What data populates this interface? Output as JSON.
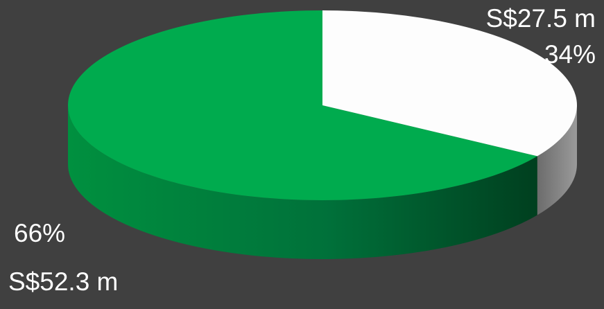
{
  "chart_data": {
    "type": "pie",
    "title": "",
    "style": "3d",
    "slices": [
      {
        "value_label": "S$27.5 m",
        "value": 27.5,
        "percent_label": "34%",
        "percent": 34,
        "color": "#fdfdfd",
        "side_color": "#8a8a8a"
      },
      {
        "value_label": "S$52.3 m",
        "value": 52.3,
        "percent_label": "66%",
        "percent": 66,
        "color": "#00ab4e",
        "side_color": "#006e30"
      }
    ],
    "background": "#404040"
  }
}
